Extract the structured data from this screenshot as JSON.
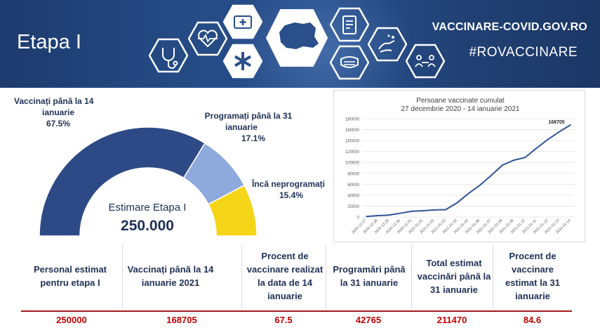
{
  "banner": {
    "title": "Etapa I",
    "site_url": "VACCINARE-COVID.GOV.RO",
    "hashtag": "#ROVACCINARE",
    "icons": [
      "stethoscope-icon",
      "heart-monitor-icon",
      "medical-case-icon",
      "star-of-life-icon",
      "romania-map-icon",
      "clipboard-icon",
      "face-mask-icon",
      "hand-washing-icon",
      "social-distance-icon"
    ]
  },
  "chart_data": [
    {
      "type": "pie",
      "subtype": "half-donut",
      "categories": [
        "Vaccinați până la 14 ianuarie",
        "Programați până la 31 ianuarie",
        "Încă neprogramați"
      ],
      "values": [
        67.5,
        17.1,
        15.4
      ],
      "labels": {
        "vaccinated": [
          "Vaccinați până la 14",
          "ianuarie",
          "67.5%"
        ],
        "scheduled": [
          "Programați până la 31",
          "ianuarie",
          "17.1%"
        ],
        "unscheduled": [
          "Încă neprogramați",
          "15.4%"
        ]
      },
      "center_label": "Estimare Etapa I",
      "center_value": "250.000",
      "colors": [
        "#2e4a86",
        "#8ea9dc",
        "#f5d517"
      ]
    },
    {
      "type": "line",
      "title": "Persoane vaccinate cumulat",
      "subtitle": "27 decembrie 2020 - 14 ianuarie 2021",
      "x": [
        "2020-12-27",
        "2020-12-28",
        "2020-12-29",
        "2020-12-30",
        "2020-12-31",
        "2021-01-01",
        "2021-01-02",
        "2021-01-03",
        "2021-01-04",
        "2021-01-05",
        "2021-01-06",
        "2021-01-07",
        "2021-01-08",
        "2021-01-09",
        "2021-01-10",
        "2021-01-11",
        "2021-01-12",
        "2021-01-13",
        "2021-01-14"
      ],
      "series": [
        {
          "values": [
            1000,
            2500,
            3500,
            7000,
            10500,
            11500,
            13000,
            13500,
            26000,
            43000,
            58000,
            76000,
            95000,
            104000,
            109000,
            126000,
            142000,
            156000,
            168705
          ],
          "color": "#2f5597"
        }
      ],
      "data_label": "168705",
      "ylim": [
        0,
        180000
      ],
      "yticks": [
        "0",
        "20000",
        "40000",
        "60000",
        "80000",
        "100000",
        "120000",
        "140000",
        "160000",
        "180000"
      ],
      "grid": true
    }
  ],
  "table": {
    "headers": [
      "Personal estimat pentru etapa I",
      "Vaccinați până la 14 ianuarie 2021",
      "Procent de vaccinare realizat la data de 14 ianuarie",
      "Programări până la 31 ianuarie",
      "Total estimat vaccinări până la 31 ianuarie",
      "Procent de vaccinare estimat la 31 ianuarie"
    ],
    "values": [
      "250000",
      "168705",
      "67.5",
      "42765",
      "211470",
      "84.6"
    ]
  },
  "colors": {
    "accent_red": "#c00000",
    "navy": "#1f3056"
  }
}
